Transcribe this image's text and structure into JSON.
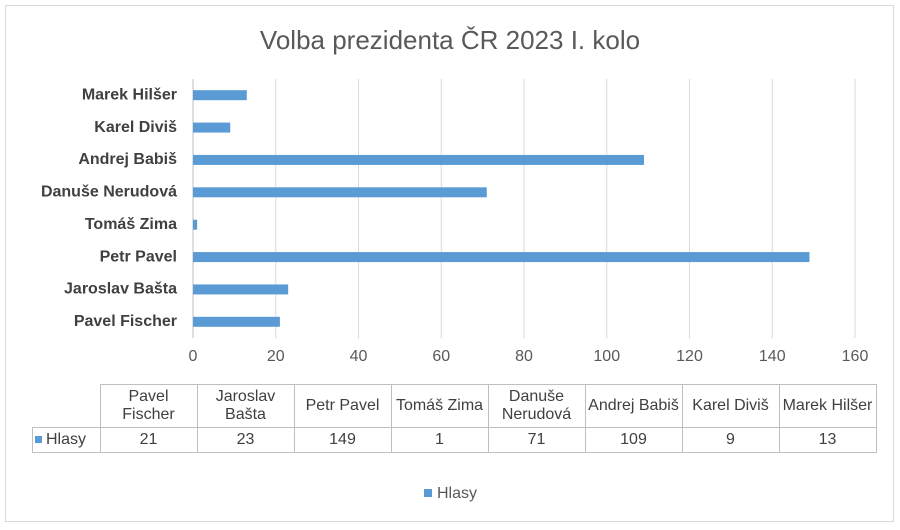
{
  "chart_data": {
    "type": "barh",
    "title": "Volba prezidenta ČR 2023 I. kolo",
    "categories": [
      "Pavel Fischer",
      "Jaroslav Bašta",
      "Petr Pavel",
      "Tomáš Zima",
      "Danuše Nerudová",
      "Andrej Babiš",
      "Karel Diviš",
      "Marek Hilšer"
    ],
    "series": [
      {
        "name": "Hlasy",
        "color": "#5b9bd5",
        "values": [
          21,
          23,
          149,
          1,
          71,
          109,
          9,
          13
        ]
      }
    ],
    "xlim": [
      0,
      160
    ],
    "xticks": [
      0,
      20,
      40,
      60,
      80,
      100,
      120,
      140,
      160
    ],
    "grid": true,
    "data_table": true,
    "legend": "bottom"
  }
}
